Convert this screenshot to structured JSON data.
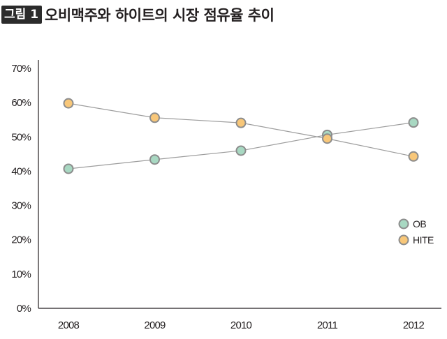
{
  "header": {
    "figure_label": "그림 1",
    "title": "오비맥주와 하이트의 시장 점유율 추이"
  },
  "chart_data": {
    "type": "line",
    "categories": [
      "2008",
      "2009",
      "2010",
      "2011",
      "2012"
    ],
    "series": [
      {
        "name": "OB",
        "values": [
          40.7,
          43.4,
          46.0,
          50.6,
          54.2
        ],
        "color": "#a8d8c2"
      },
      {
        "name": "HITE",
        "values": [
          59.8,
          55.6,
          54.1,
          49.5,
          44.3
        ],
        "color": "#f8c779"
      }
    ],
    "y_ticks": [
      "0%",
      "10%",
      "20%",
      "30%",
      "40%",
      "50%",
      "60%",
      "70%"
    ],
    "ylim": [
      0,
      70
    ],
    "legend_position": "bottom-right",
    "grid": false,
    "line_color": "#9d9d9d",
    "marker_stroke": "#8c8c8c"
  }
}
